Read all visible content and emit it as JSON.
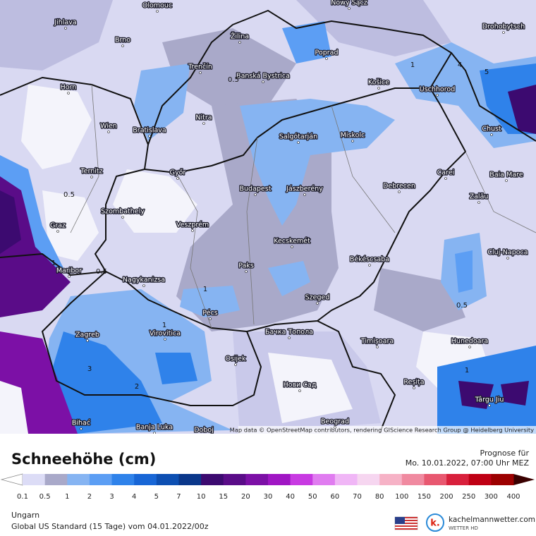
{
  "map": {
    "cities": [
      "Olomouc",
      "Nowy Sącz",
      "Jihlava",
      "Žilina",
      "Drohobytsch",
      "Brno",
      "Poprad",
      "Trenčín",
      "Banská Bystrica",
      "Košice",
      "Uschhorod",
      "Horn",
      "Nitra",
      "Wien",
      "Bratislava",
      "Chust",
      "Salgótarján",
      "Miskolc",
      "Ternitz",
      "Győr",
      "Carei",
      "Baia Mare",
      "Budapest",
      "Jászberény",
      "Debrecen",
      "Szombathely",
      "Zalău",
      "Graz",
      "Veszprém",
      "Kecskemét",
      "Cluj-Napoca",
      "Maribor",
      "Paks",
      "Békéscsaba",
      "Nagykanizsa",
      "Szeged",
      "Pécs",
      "Zagreb",
      "Virovitica",
      "Бачка Топола",
      "Timișoara",
      "Hunedoara",
      "Osijek",
      "Нови Сад",
      "Reșița",
      "Târgu Jiu",
      "Bihać",
      "Banja Luka",
      "Doboj",
      "Beograd"
    ],
    "contour_labels": [
      "0.5",
      "1",
      "4",
      "5",
      "0.5",
      "1",
      "0.5",
      "1",
      "1",
      "0.5",
      "3",
      "2",
      "1"
    ],
    "attribution": "Map data © OpenStreetMap contributors, rendering GIScience Research Group @ Heidelberg University"
  },
  "footer": {
    "title": "Schneehöhe (cm)",
    "forecast_label": "Prognose für",
    "forecast_time": "Mo. 10.01.2022, 07:00 Uhr MEZ",
    "region": "Ungarn",
    "model": "Global US Standard (15 Tage) vom  04.01.2022/00z",
    "brand": "kachelmannwetter.com",
    "brand_sub": "WETTER HD"
  },
  "legend": {
    "labels": [
      0.1,
      0.5,
      1,
      2,
      3,
      4,
      5,
      7,
      10,
      15,
      20,
      30,
      40,
      50,
      60,
      70,
      80,
      100,
      150,
      200,
      250,
      300,
      400
    ],
    "colors": [
      "#dcdcf6",
      "#a9a9c9",
      "#86b4f2",
      "#5c9ef4",
      "#2f82ea",
      "#1866d6",
      "#0d4fb2",
      "#0a378a",
      "#3c0a70",
      "#5a0c88",
      "#7c10a6",
      "#a016c4",
      "#c83ae2",
      "#e07cf0",
      "#f0b6f6",
      "#f6d6f0",
      "#f6b2c6",
      "#f08aa0",
      "#e85870",
      "#d8203c",
      "#bf0014",
      "#9c0000"
    ]
  }
}
